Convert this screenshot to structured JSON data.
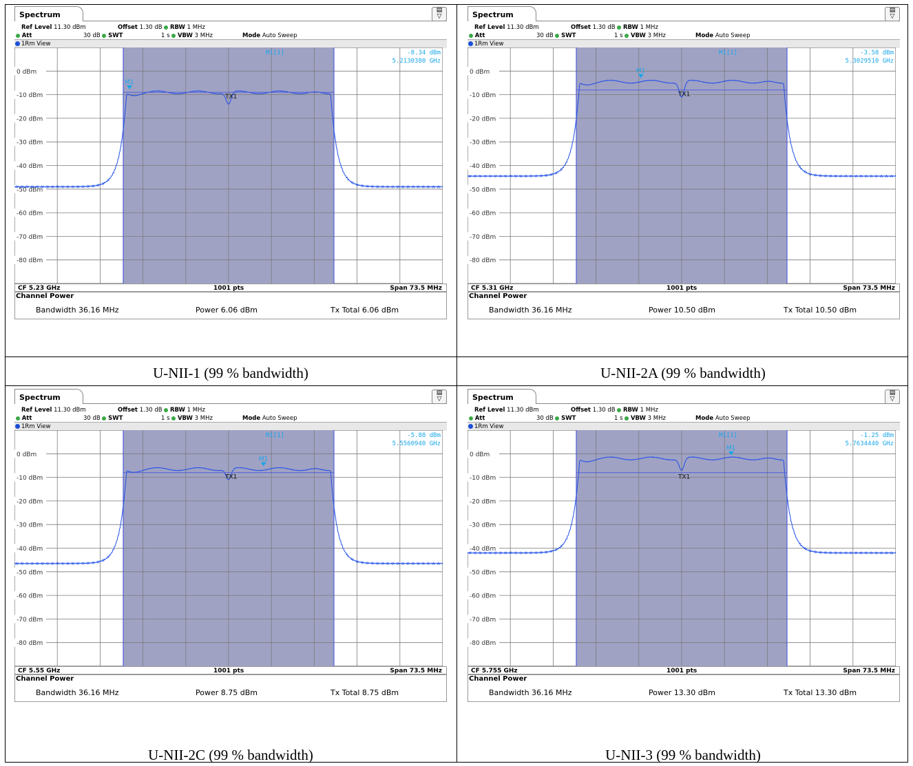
{
  "colors": {
    "trace": "#1f4fe8",
    "channel_fill": "#a0a2c4",
    "marker_text": "#1aa6e8",
    "grid": "#7a7a7a",
    "line": "#5060d8"
  },
  "panels": [
    {
      "caption": "U-NII-1 (99 % bandwidth)",
      "tab": "Spectrum",
      "ref_level_label": "Ref Level",
      "ref_level": "11.30 dBm",
      "offset_label": "Offset",
      "offset": "1.30 dB",
      "rbw_label": "RBW",
      "rbw": "1 MHz",
      "att_label": "Att",
      "att": "30 dB",
      "swt_label": "SWT",
      "swt": "1 s",
      "vbw_label": "VBW",
      "vbw": "3 MHz",
      "mode_label": "Mode",
      "mode": "Auto Sweep",
      "view": "1Rm View",
      "marker_label": "M1[1]",
      "marker_level": "-8.34 dBm",
      "marker_freq": "5.2130380 GHz",
      "cf": "CF 5.23 GHz",
      "pts": "1001 pts",
      "span": "Span 73.5 MHz",
      "cp_title": "Channel Power",
      "bandwidth": "Bandwidth  36.16 MHz",
      "power": "Power  6.06 dBm",
      "tx_total": "Tx Total  6.06 dBm",
      "chart_data": {
        "type": "line",
        "y_ticks": [
          "0 dBm",
          "-10 dBm",
          "-20 dBm",
          "-30 dBm",
          "-40 dBm",
          "-50 dBm",
          "-60 dBm",
          "-70 dBm",
          "-80 dBm"
        ],
        "ylim": [
          -90,
          10
        ],
        "xlim_mhz": [
          -36.75,
          36.75
        ],
        "channel_half_bw_mhz": 18.08,
        "in_band_level_dbm": -9.0,
        "noise_floor_left_dbm": -53,
        "noise_floor_right_dbm": -53,
        "center_dip_dbm": -14,
        "tx_line_dbm": -9.0,
        "marker": {
          "name": "M1",
          "x_mhz": -17,
          "y_dbm": -8.34
        },
        "tx_label": "TX1"
      }
    },
    {
      "caption": "U-NII-2A (99 % bandwidth)",
      "tab": "Spectrum",
      "ref_level_label": "Ref Level",
      "ref_level": "11.30 dBm",
      "offset_label": "Offset",
      "offset": "1.30 dB",
      "rbw_label": "RBW",
      "rbw": "1 MHz",
      "att_label": "Att",
      "att": "30 dB",
      "swt_label": "SWT",
      "swt": "1 s",
      "vbw_label": "VBW",
      "vbw": "3 MHz",
      "mode_label": "Mode",
      "mode": "Auto Sweep",
      "view": "1Rm View",
      "marker_label": "M1[1]",
      "marker_level": "-3.58 dBm",
      "marker_freq": "5.3029510 GHz",
      "cf": "CF 5.31 GHz",
      "pts": "1001 pts",
      "span": "Span 73.5 MHz",
      "cp_title": "Channel Power",
      "bandwidth": "Bandwidth  36.16 MHz",
      "power": "Power  10.50 dBm",
      "tx_total": "Tx Total  10.50 dBm",
      "chart_data": {
        "type": "line",
        "y_ticks": [
          "0 dBm",
          "-10 dBm",
          "-20 dBm",
          "-30 dBm",
          "-40 dBm",
          "-50 dBm",
          "-60 dBm",
          "-70 dBm",
          "-80 dBm"
        ],
        "ylim": [
          -90,
          10
        ],
        "xlim_mhz": [
          -36.75,
          36.75
        ],
        "channel_half_bw_mhz": 18.08,
        "in_band_level_dbm": -4.5,
        "noise_floor_left_dbm": -49,
        "noise_floor_right_dbm": -51,
        "center_dip_dbm": -11,
        "tx_line_dbm": -8.0,
        "marker": {
          "name": "M1",
          "x_mhz": -7,
          "y_dbm": -3.58
        },
        "tx_label": "TX1"
      }
    },
    {
      "caption": "U-NII-2C (99 % bandwidth)",
      "tab": "Spectrum",
      "ref_level_label": "Ref Level",
      "ref_level": "11.30 dBm",
      "offset_label": "Offset",
      "offset": "1.30 dB",
      "rbw_label": "RBW",
      "rbw": "1 MHz",
      "att_label": "Att",
      "att": "30 dB",
      "swt_label": "SWT",
      "swt": "1 s",
      "vbw_label": "VBW",
      "vbw": "3 MHz",
      "mode_label": "Mode",
      "mode": "Auto Sweep",
      "view": "1Rm View",
      "marker_label": "M1[1]",
      "marker_level": "-5.88 dBm",
      "marker_freq": "5.5560940 GHz",
      "cf": "CF 5.55 GHz",
      "pts": "1001 pts",
      "span": "Span 73.5 MHz",
      "cp_title": "Channel Power",
      "bandwidth": "Bandwidth  36.16 MHz",
      "power": "Power  8.75 dBm",
      "tx_total": "Tx Total  8.75 dBm",
      "chart_data": {
        "type": "line",
        "y_ticks": [
          "0 dBm",
          "-10 dBm",
          "-20 dBm",
          "-30 dBm",
          "-40 dBm",
          "-50 dBm",
          "-60 dBm",
          "-70 dBm",
          "-80 dBm"
        ],
        "ylim": [
          -90,
          10
        ],
        "xlim_mhz": [
          -36.75,
          36.75
        ],
        "channel_half_bw_mhz": 18.08,
        "in_band_level_dbm": -6.5,
        "noise_floor_left_dbm": -51,
        "noise_floor_right_dbm": -53,
        "center_dip_dbm": -11,
        "tx_line_dbm": -8.0,
        "marker": {
          "name": "M1",
          "x_mhz": 6,
          "y_dbm": -5.88
        },
        "tx_label": "TX1"
      }
    },
    {
      "caption": "U-NII-3 (99 % bandwidth)",
      "tab": "Spectrum",
      "ref_level_label": "Ref Level",
      "ref_level": "11.30 dBm",
      "offset_label": "Offset",
      "offset": "1.30 dB",
      "rbw_label": "RBW",
      "rbw": "1 MHz",
      "att_label": "Att",
      "att": "30 dB",
      "swt_label": "SWT",
      "swt": "1 s",
      "vbw_label": "VBW",
      "vbw": "3 MHz",
      "mode_label": "Mode",
      "mode": "Auto Sweep",
      "view": "1Rm View",
      "marker_label": "M1[1]",
      "marker_level": "-1.25 dBm",
      "marker_freq": "5.7634440 GHz",
      "cf": "CF 5.755 GHz",
      "pts": "1001 pts",
      "span": "Span 73.5 MHz",
      "cp_title": "Channel Power",
      "bandwidth": "Bandwidth  36.16 MHz",
      "power": "Power  13.30 dBm",
      "tx_total": "Tx Total  13.30 dBm",
      "chart_data": {
        "type": "line",
        "y_ticks": [
          "0 dBm",
          "-10 dBm",
          "-20 dBm",
          "-30 dBm",
          "-40 dBm",
          "-50 dBm",
          "-60 dBm",
          "-70 dBm",
          "-80 dBm"
        ],
        "ylim": [
          -90,
          10
        ],
        "xlim_mhz": [
          -36.75,
          36.75
        ],
        "channel_half_bw_mhz": 18.08,
        "in_band_level_dbm": -2.0,
        "noise_floor_left_dbm": -47,
        "noise_floor_right_dbm": -46,
        "center_dip_dbm": -7,
        "tx_line_dbm": -8.0,
        "marker": {
          "name": "M1",
          "x_mhz": 8.5,
          "y_dbm": -1.25
        },
        "tx_label": "TX1"
      }
    }
  ]
}
